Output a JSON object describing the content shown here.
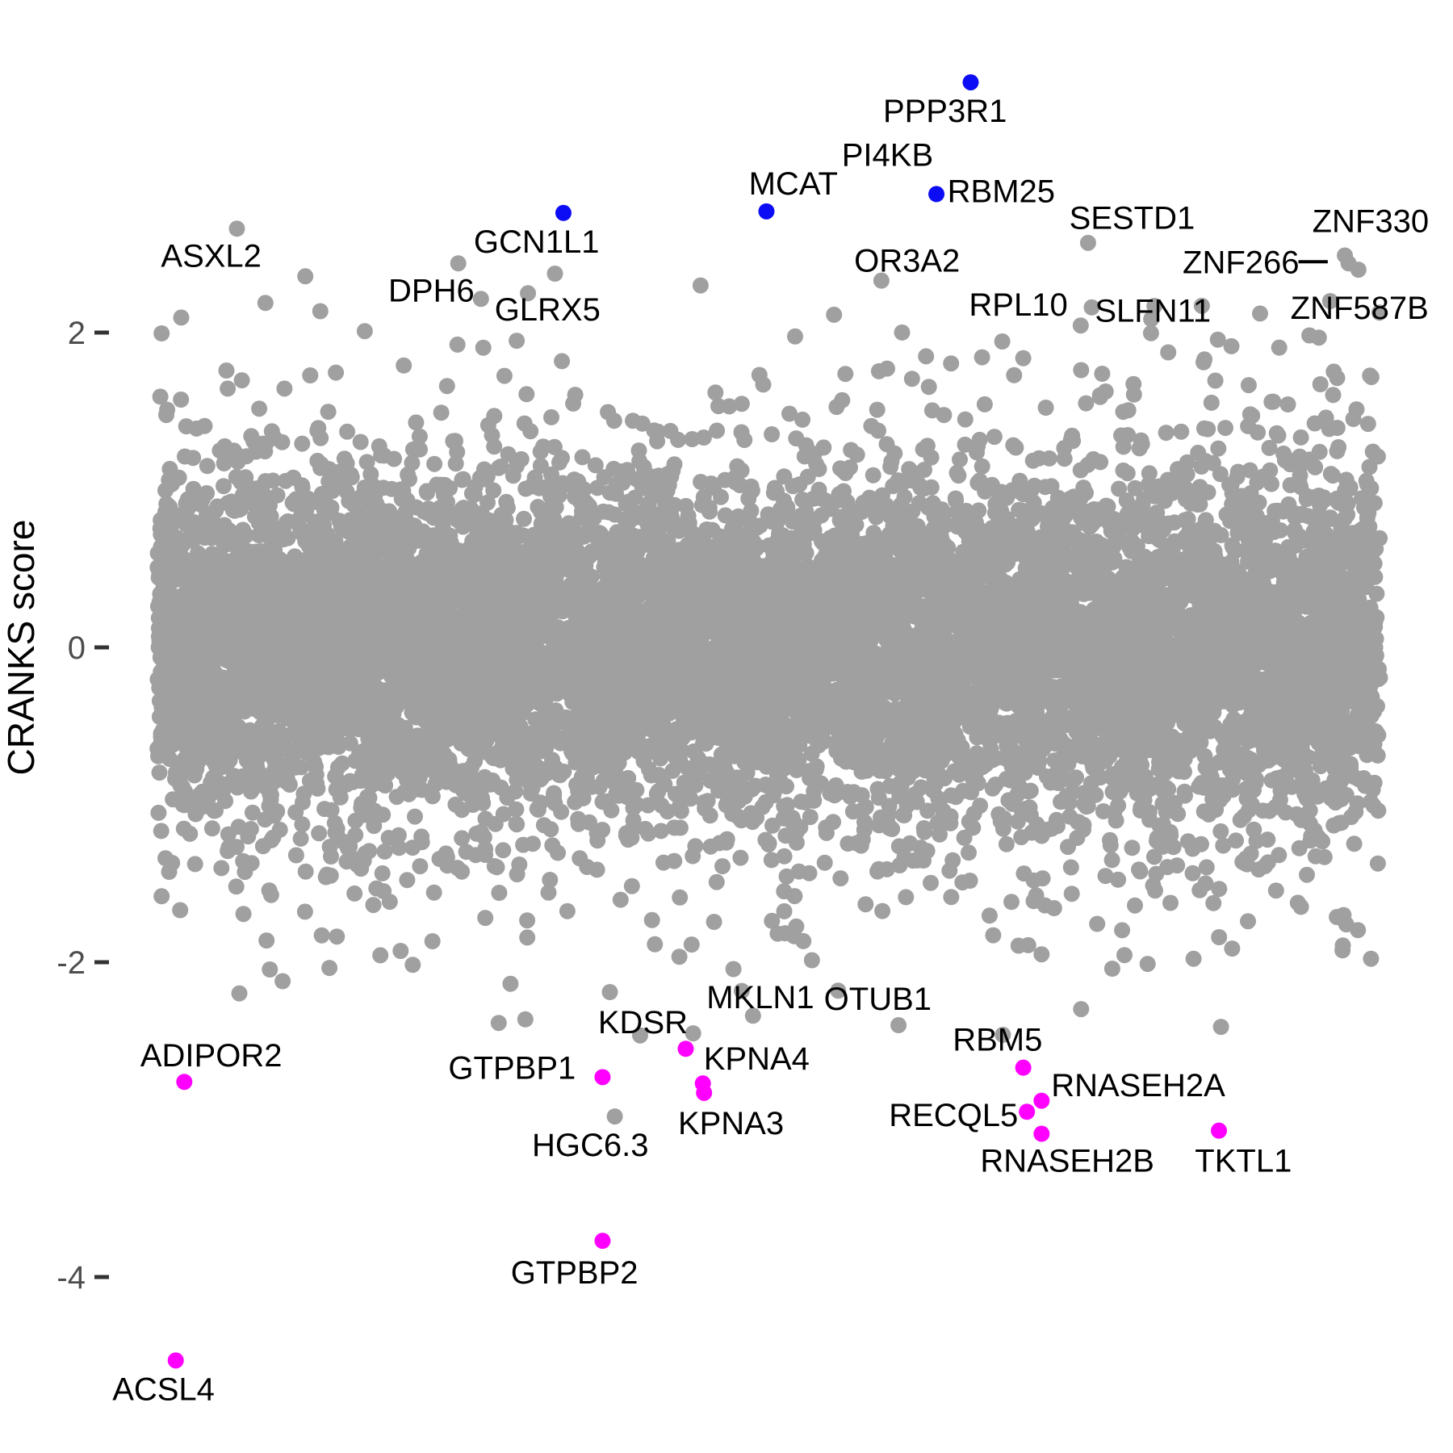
{
  "chart_data": {
    "type": "scatter",
    "title": "",
    "xlabel": "",
    "ylabel": "CRANKS score",
    "ylim": [
      -5.1,
      4.1
    ],
    "grid": false,
    "legend": "none",
    "yticks": [
      {
        "value": 2,
        "label": "2"
      },
      {
        "value": 0,
        "label": "0"
      },
      {
        "value": -2,
        "label": "-2"
      },
      {
        "value": -4,
        "label": "-4"
      }
    ],
    "colors": {
      "background_point": "#A0A0A0",
      "up_hit": "#0D0DF5",
      "down_hit": "#FF00FF",
      "label_text": "#000000",
      "tick_text": "#4D4D4D",
      "tick_mark": "#333333"
    },
    "highlighted_up": [
      {
        "gene": "GCN1L1",
        "x": 0.332,
        "y": 2.76,
        "dot": true,
        "label_x": 0.31,
        "label_y": 2.58
      },
      {
        "gene": "MCAT",
        "x": 0.498,
        "y": 2.77,
        "dot": true,
        "label_x": 0.52,
        "label_y": 2.95
      },
      {
        "gene": "PI4KB",
        "x": 0.637,
        "y": 2.88,
        "dot": false,
        "label_x": 0.597,
        "label_y": 3.13
      },
      {
        "gene": "RBM25",
        "x": 0.637,
        "y": 2.88,
        "dot": true,
        "label_x": 0.69,
        "label_y": 2.9
      },
      {
        "gene": "PPP3R1",
        "x": 0.665,
        "y": 3.59,
        "dot": true,
        "label_x": 0.644,
        "label_y": 3.41
      }
    ],
    "labeled_neutral": [
      {
        "gene": "ASXL2",
        "x": 0.065,
        "y": 2.66,
        "dot": true,
        "label_x": 0.044,
        "label_y": 2.49
      },
      {
        "gene": "DPH6",
        "x": 0.246,
        "y": 2.44,
        "dot": true,
        "label_x": 0.224,
        "label_y": 2.27
      },
      {
        "gene": "GLRX5",
        "x": 0.303,
        "y": 2.25,
        "dot": true,
        "label_x": 0.319,
        "label_y": 2.15
      },
      {
        "gene": "OR3A2",
        "x": 0.592,
        "y": 2.33,
        "dot": true,
        "label_x": 0.613,
        "label_y": 2.46
      },
      {
        "gene": "SESTD1",
        "x": 0.761,
        "y": 2.57,
        "dot": true,
        "label_x": 0.797,
        "label_y": 2.73
      },
      {
        "gene": "RPL10",
        "x": 0.764,
        "y": 2.16,
        "dot": true,
        "label_x": 0.704,
        "label_y": 2.18
      },
      {
        "gene": "SLFN11",
        "x": 0.854,
        "y": 2.17,
        "dot": true,
        "label_x": 0.814,
        "label_y": 2.14
      },
      {
        "gene": "ZNF266",
        "x": 0.974,
        "y": 2.44,
        "dot": true,
        "label_x": 0.886,
        "label_y": 2.45
      },
      {
        "gene": "ZNF330",
        "x": 0.971,
        "y": 2.49,
        "dot": true,
        "label_x": 0.992,
        "label_y": 2.71
      },
      {
        "gene": "ZNF587B",
        "x": 0.959,
        "y": 2.2,
        "dot": true,
        "label_x": 0.983,
        "label_y": 2.16
      },
      {
        "gene": "MKLN1",
        "x": 0.487,
        "y": -2.34,
        "dot": true,
        "label_x": 0.493,
        "label_y": -2.22
      },
      {
        "gene": "OTUB1",
        "x": 0.606,
        "y": -2.4,
        "dot": true,
        "label_x": 0.589,
        "label_y": -2.23
      },
      {
        "gene": "HGC6.3",
        "x": 0.374,
        "y": -2.98,
        "dot": true,
        "label_x": 0.354,
        "label_y": -3.16
      }
    ],
    "highlighted_down": [
      {
        "gene": "ADIPOR2",
        "x": 0.022,
        "y": -2.76,
        "dot": true,
        "label_x": 0.044,
        "label_y": -2.59
      },
      {
        "gene": "GTPBP1",
        "x": 0.364,
        "y": -2.73,
        "dot": true,
        "label_x": 0.29,
        "label_y": -2.67
      },
      {
        "gene": "KDSR",
        "x": 0.432,
        "y": -2.55,
        "dot": true,
        "label_x": 0.397,
        "label_y": -2.38
      },
      {
        "gene": "KPNA4",
        "x": 0.446,
        "y": -2.77,
        "dot": true,
        "label_x": 0.49,
        "label_y": -2.61
      },
      {
        "gene": "KPNA3",
        "x": 0.447,
        "y": -2.83,
        "dot": true,
        "label_x": 0.469,
        "label_y": -3.02
      },
      {
        "gene": "RBM5",
        "x": 0.708,
        "y": -2.67,
        "dot": true,
        "label_x": 0.687,
        "label_y": -2.49
      },
      {
        "gene": "RNASEH2A",
        "x": 0.723,
        "y": -2.88,
        "dot": true,
        "label_x": 0.802,
        "label_y": -2.78
      },
      {
        "gene": "RECQL5",
        "x": 0.711,
        "y": -2.95,
        "dot": true,
        "label_x": 0.651,
        "label_y": -2.97
      },
      {
        "gene": "RNASEH2B",
        "x": 0.723,
        "y": -3.09,
        "dot": true,
        "label_x": 0.744,
        "label_y": -3.26
      },
      {
        "gene": "TKTL1",
        "x": 0.868,
        "y": -3.07,
        "dot": true,
        "label_x": 0.888,
        "label_y": -3.26
      },
      {
        "gene": "GTPBP2",
        "x": 0.364,
        "y": -3.77,
        "dot": true,
        "label_x": 0.341,
        "label_y": -3.97
      },
      {
        "gene": "ACSL4",
        "x": 0.015,
        "y": -4.53,
        "dot": true,
        "label_x": 0.005,
        "label_y": -4.71
      }
    ],
    "leader_lines": [
      {
        "gene": "ZNF266",
        "x1": 0.933,
        "y1": 2.45,
        "x2": 0.957,
        "y2": 2.45
      }
    ],
    "background": {
      "count": 9500,
      "seed": 13,
      "point_radius": 10,
      "x_range": [
        0,
        1
      ],
      "y_mixture": [
        {
          "weight": 0.78,
          "sd": 0.52
        },
        {
          "weight": 0.2,
          "sd": 0.85
        },
        {
          "weight": 0.02,
          "sd": 1.15
        }
      ],
      "y_clip": [
        -2.52,
        2.46
      ]
    }
  }
}
